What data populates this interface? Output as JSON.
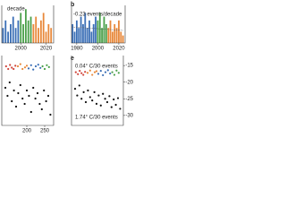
{
  "chart_data": [
    {
      "type": "bar",
      "title": "decade",
      "xlim": [
        1985,
        2026
      ],
      "ylim": [
        0,
        10
      ],
      "xticks": [
        2000,
        2020
      ],
      "series": [
        {
          "color": "#3b6fb6",
          "x": [
            1986,
            1988,
            1990,
            1992,
            1994,
            1996,
            1998
          ],
          "values": [
            4,
            6,
            3,
            5,
            7,
            4,
            6
          ]
        },
        {
          "color": "#4aa04a",
          "x": [
            2000,
            2002,
            2004,
            2006,
            2008
          ],
          "values": [
            8,
            5,
            9,
            6,
            7
          ]
        },
        {
          "color": "#e8883a",
          "x": [
            2010,
            2012,
            2014,
            2016,
            2018,
            2020,
            2022,
            2024
          ],
          "values": [
            5,
            7,
            4,
            6,
            8,
            3,
            5,
            4
          ]
        }
      ]
    },
    {
      "type": "bar",
      "label": "b",
      "annotation": "-0.23 events/decade",
      "xlim": [
        1975,
        2026
      ],
      "ylim": [
        0,
        10
      ],
      "xticks": [
        1980,
        2000,
        2020
      ],
      "series": [
        {
          "color": "#3b6fb6",
          "x": [
            1976,
            1978,
            1980,
            1982,
            1984,
            1986,
            1988,
            1990,
            1992,
            1994,
            1996,
            1998
          ],
          "values": [
            5,
            3,
            6,
            4,
            7,
            5,
            8,
            4,
            6,
            3,
            5,
            7
          ]
        },
        {
          "color": "#4aa04a",
          "x": [
            2000,
            2002,
            2004,
            2006,
            2008
          ],
          "values": [
            6,
            8,
            4,
            7,
            5
          ]
        },
        {
          "color": "#e8883a",
          "x": [
            2010,
            2012,
            2014,
            2016,
            2018,
            2020,
            2022,
            2024
          ],
          "values": [
            4,
            6,
            3,
            5,
            4,
            6,
            3,
            2
          ]
        }
      ]
    },
    {
      "type": "scatter",
      "xlim": [
        130,
        275
      ],
      "ylim": [
        -38,
        -12
      ],
      "xticks": [
        200,
        250
      ],
      "series": [
        {
          "color": "#d0443a",
          "x": [
            142,
            148,
            153,
            158,
            163,
            168
          ],
          "values": [
            -16,
            -17,
            -15.5,
            -16.5,
            -17,
            -15.8
          ]
        },
        {
          "color": "#e8883a",
          "x": [
            175,
            182,
            188,
            195,
            200
          ],
          "values": [
            -16,
            -15.2,
            -17,
            -16.4,
            -15.8
          ]
        },
        {
          "color": "#3b6fb6",
          "x": [
            205,
            212,
            218,
            225,
            232,
            238
          ],
          "values": [
            -16.8,
            -15.6,
            -17.2,
            -16,
            -15.4,
            -16.6
          ]
        },
        {
          "color": "#4aa04a",
          "x": [
            244,
            250,
            256,
            262
          ],
          "values": [
            -16,
            -17,
            -15.6,
            -16.3
          ]
        },
        {
          "color": "#111111",
          "x": [
            140,
            146,
            152,
            158,
            164,
            170,
            176,
            182,
            188,
            194,
            200,
            206,
            212,
            218,
            224,
            230,
            236,
            242,
            248,
            254,
            260,
            266
          ],
          "values": [
            -24,
            -27,
            -22,
            -29,
            -25,
            -31,
            -26,
            -23,
            -28,
            -30,
            -25,
            -27,
            -33,
            -24,
            -28,
            -26,
            -30,
            -32,
            -25,
            -29,
            -27,
            -34
          ]
        }
      ]
    },
    {
      "type": "scatter",
      "label": "e",
      "annotations": [
        "0.04° C/30 events",
        "1.74° C/30 events"
      ],
      "xlim": [
        130,
        275
      ],
      "ylim": [
        -33,
        -12
      ],
      "yticks": [
        -15,
        -20,
        -25,
        -30
      ],
      "series": [
        {
          "color": "#d0443a",
          "x": [
            142,
            148,
            153,
            158,
            163,
            168
          ],
          "values": [
            -17,
            -17.6,
            -16.6,
            -17.3,
            -17.8,
            -16.9
          ]
        },
        {
          "color": "#e8883a",
          "x": [
            175,
            182,
            188,
            195,
            200
          ],
          "values": [
            -17.2,
            -16.5,
            -17.8,
            -17,
            -16.7
          ]
        },
        {
          "color": "#3b6fb6",
          "x": [
            205,
            212,
            218,
            225,
            232,
            238
          ],
          "values": [
            -17.5,
            -16.6,
            -17.9,
            -17,
            -16.4,
            -17.4
          ]
        },
        {
          "color": "#4aa04a",
          "x": [
            244,
            250,
            256,
            262
          ],
          "values": [
            -17,
            -17.8,
            -16.5,
            -17.2
          ]
        },
        {
          "color": "#111111",
          "x": [
            140,
            146,
            152,
            158,
            164,
            170,
            176,
            182,
            188,
            194,
            200,
            206,
            212,
            218,
            224,
            230,
            236,
            242,
            248,
            254,
            260,
            266
          ],
          "values": [
            -22,
            -24,
            -21,
            -25,
            -23,
            -26,
            -22.5,
            -24.5,
            -25.5,
            -23,
            -26.5,
            -24,
            -27,
            -23.5,
            -25,
            -26,
            -24.2,
            -27.5,
            -25.2,
            -26.8,
            -24.8,
            -28
          ]
        }
      ]
    }
  ]
}
